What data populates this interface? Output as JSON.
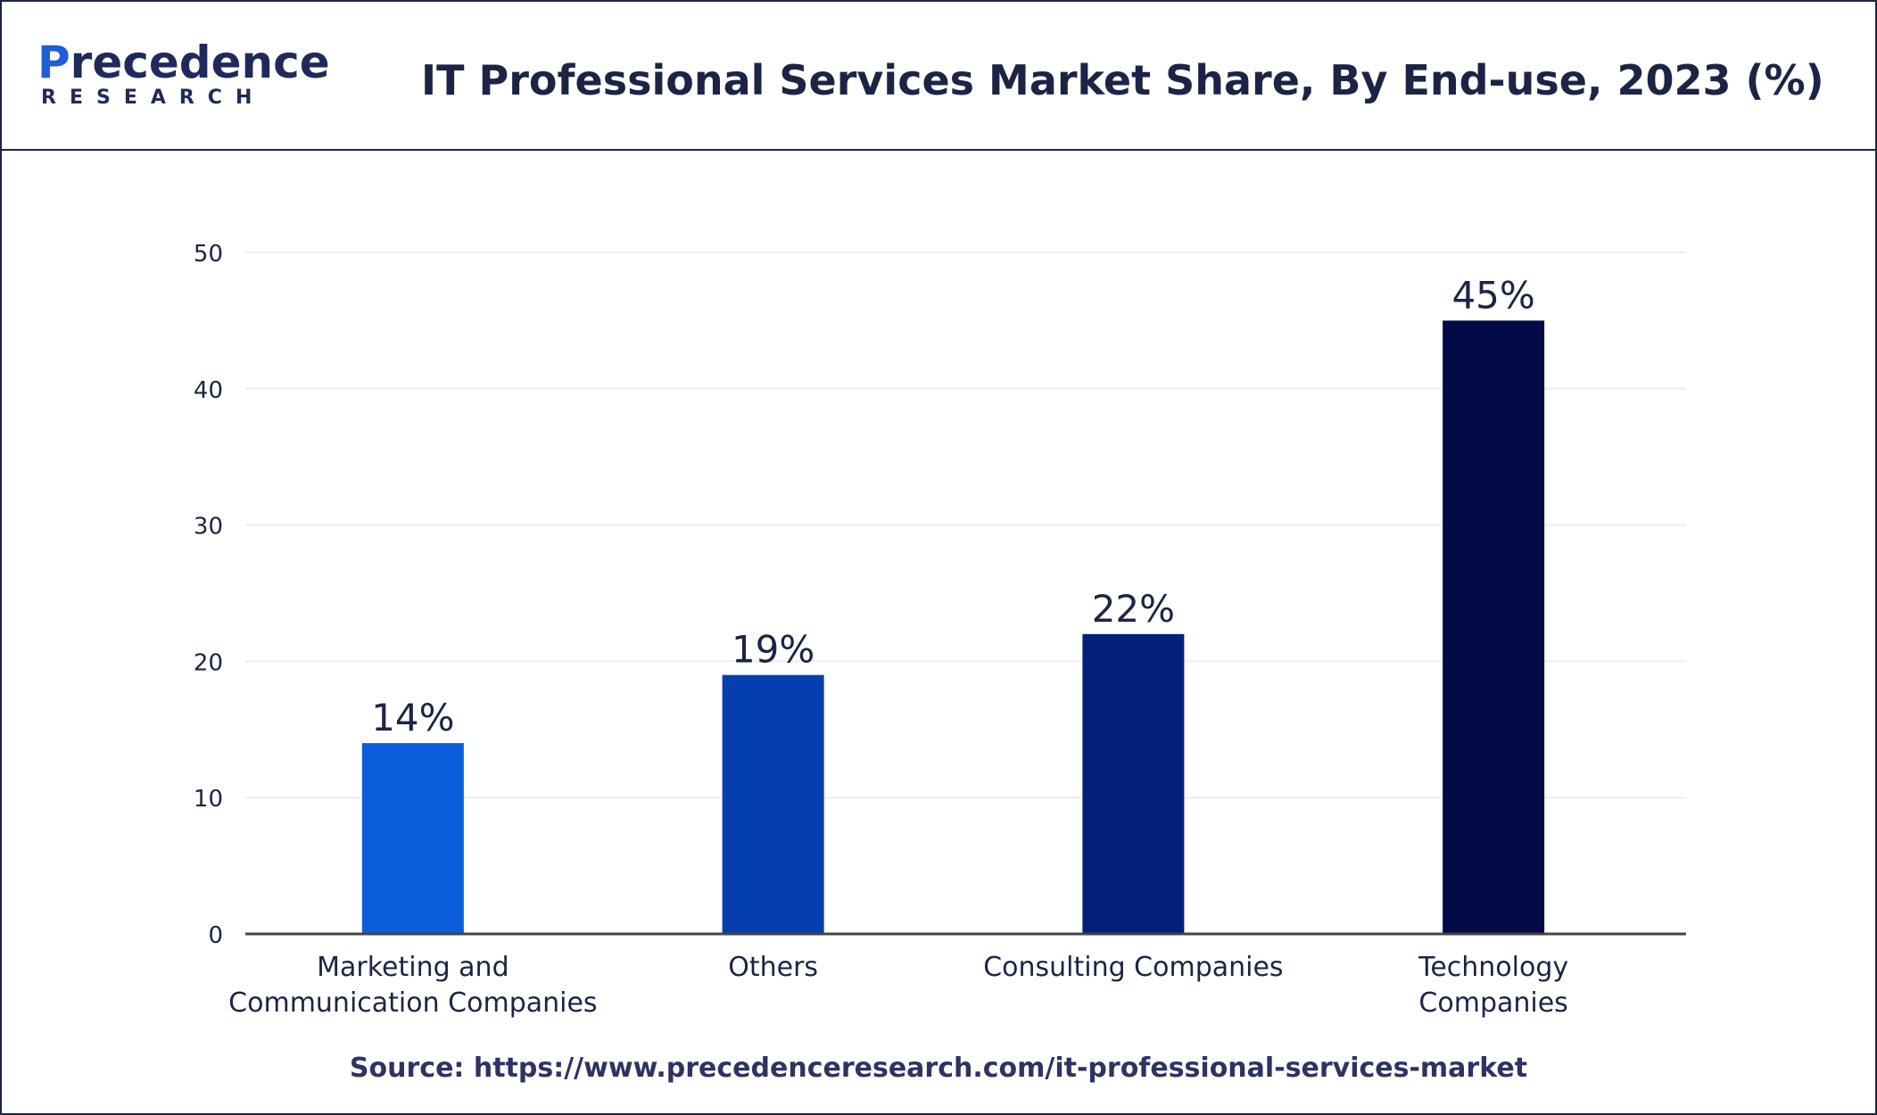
{
  "brand": {
    "logo_first_letter": "P",
    "logo_rest": "recedence",
    "logo_subtitle": "RESEARCH"
  },
  "header": {
    "title": "IT Professional Services Market Share, By End-use, 2023 (%)"
  },
  "chart_data": {
    "type": "bar",
    "title": "IT Professional Services Market Share, By End-use, 2023 (%)",
    "xlabel": "",
    "ylabel": "",
    "ylim": [
      0,
      50
    ],
    "yticks": [
      "0",
      "10",
      "20",
      "30",
      "40",
      "50"
    ],
    "grid": true,
    "categories": [
      [
        "Marketing and",
        "Communication Companies"
      ],
      [
        "Others"
      ],
      [
        "Consulting Companies"
      ],
      [
        "Technology",
        "Companies"
      ]
    ],
    "values": [
      14,
      19,
      22,
      45
    ],
    "labels": [
      "14%",
      "19%",
      "22%",
      "45%"
    ],
    "colors": [
      "#0a5edb",
      "#053fae",
      "#05207a",
      "#020a48"
    ]
  },
  "footer": {
    "source": "Source: https://www.precedenceresearch.com/it-professional-services-market"
  }
}
